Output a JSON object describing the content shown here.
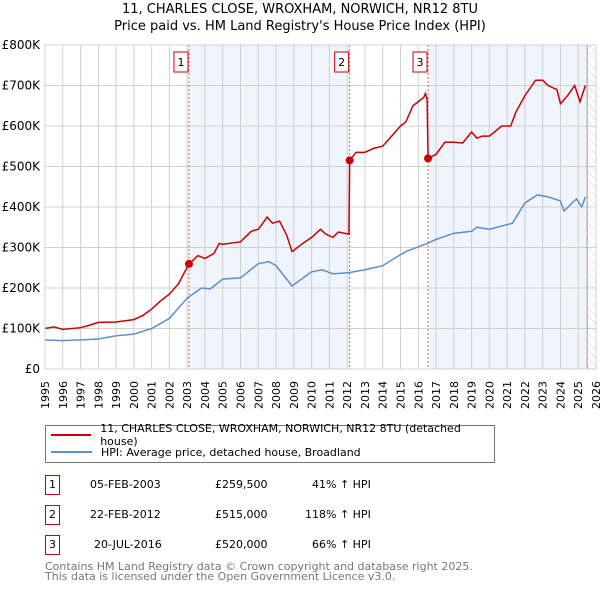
{
  "title_line1": "11, CHARLES CLOSE, WROXHAM, NORWICH, NR12 8TU",
  "title_line2": "Price paid vs. HM Land Registry's House Price Index (HPI)",
  "legend": [
    {
      "label": "11, CHARLES CLOSE, WROXHAM, NORWICH, NR12 8TU (detached house)",
      "color": "#cc0000"
    },
    {
      "label": "HPI: Average price, detached house, Broadland",
      "color": "#5b8fd0"
    }
  ],
  "sales": [
    {
      "num": "1",
      "date": "05-FEB-2003",
      "price": "£259,500",
      "hpi": "41% ↑ HPI"
    },
    {
      "num": "2",
      "date": "22-FEB-2012",
      "price": "£515,000",
      "hpi": "118% ↑ HPI"
    },
    {
      "num": "3",
      "date": "20-JUL-2016",
      "price": "£520,000",
      "hpi": "66% ↑ HPI"
    }
  ],
  "footer": [
    "Contains HM Land Registry data © Crown copyright and database right 2025.",
    "This data is licensed under the Open Government Licence v3.0."
  ],
  "chart_data": {
    "type": "line",
    "xlim": [
      1995,
      2026
    ],
    "ylim": [
      0,
      800000
    ],
    "yticks": [
      0,
      100000,
      200000,
      300000,
      400000,
      500000,
      600000,
      700000,
      800000
    ],
    "ytick_labels": [
      "£0",
      "£100K",
      "£200K",
      "£300K",
      "£400K",
      "£500K",
      "£600K",
      "£700K",
      "£800K"
    ],
    "xticks": [
      "1995",
      "1996",
      "1997",
      "1998",
      "1999",
      "2000",
      "2001",
      "2002",
      "2003",
      "2004",
      "2005",
      "2006",
      "2007",
      "2008",
      "2009",
      "2010",
      "2011",
      "2012",
      "2013",
      "2014",
      "2015",
      "2016",
      "2017",
      "2018",
      "2019",
      "2020",
      "2021",
      "2022",
      "2023",
      "2024",
      "2025",
      "2026"
    ],
    "grid": true,
    "sale_markers": [
      {
        "label": "1",
        "x": 2003.1,
        "y": 259500
      },
      {
        "label": "2",
        "x": 2012.14,
        "y": 515000
      },
      {
        "label": "3",
        "x": 2016.55,
        "y": 520000
      }
    ],
    "hatched_from": 2025.5,
    "series": [
      {
        "name": "11, CHARLES CLOSE, WROXHAM, NORWICH, NR12 8TU (detached house)",
        "color": "#cc0000",
        "points": [
          [
            1995,
            100000
          ],
          [
            1995.5,
            104000
          ],
          [
            1996,
            98000
          ],
          [
            1997,
            102000
          ],
          [
            1997.5,
            108000
          ],
          [
            1998,
            115000
          ],
          [
            1999,
            116000
          ],
          [
            2000,
            122000
          ],
          [
            2000.5,
            132000
          ],
          [
            2001,
            148000
          ],
          [
            2001.5,
            168000
          ],
          [
            2002,
            185000
          ],
          [
            2002.5,
            210000
          ],
          [
            2003.1,
            259500
          ],
          [
            2003.6,
            280000
          ],
          [
            2004,
            273000
          ],
          [
            2004.5,
            285000
          ],
          [
            2004.8,
            310000
          ],
          [
            2005,
            308000
          ],
          [
            2006,
            314000
          ],
          [
            2006.6,
            340000
          ],
          [
            2007,
            345000
          ],
          [
            2007.5,
            375000
          ],
          [
            2007.8,
            360000
          ],
          [
            2008.2,
            365000
          ],
          [
            2008.6,
            330000
          ],
          [
            2008.9,
            290000
          ],
          [
            2009.5,
            310000
          ],
          [
            2010,
            325000
          ],
          [
            2010.5,
            345000
          ],
          [
            2010.8,
            333000
          ],
          [
            2011.2,
            325000
          ],
          [
            2011.5,
            338000
          ],
          [
            2012.1,
            333000
          ],
          [
            2012.14,
            515000
          ],
          [
            2012.5,
            535000
          ],
          [
            2013,
            535000
          ],
          [
            2013.5,
            545000
          ],
          [
            2014,
            550000
          ],
          [
            2014.5,
            575000
          ],
          [
            2015,
            600000
          ],
          [
            2015.3,
            610000
          ],
          [
            2015.7,
            650000
          ],
          [
            2016.3,
            670000
          ],
          [
            2016.4,
            680000
          ],
          [
            2016.5,
            665000
          ],
          [
            2016.55,
            520000
          ],
          [
            2017,
            530000
          ],
          [
            2017.5,
            560000
          ],
          [
            2018,
            560000
          ],
          [
            2018.5,
            558000
          ],
          [
            2019,
            585000
          ],
          [
            2019.3,
            570000
          ],
          [
            2019.6,
            575000
          ],
          [
            2020,
            575000
          ],
          [
            2020.7,
            600000
          ],
          [
            2021.2,
            600000
          ],
          [
            2021.5,
            635000
          ],
          [
            2022,
            675000
          ],
          [
            2022.6,
            713000
          ],
          [
            2023,
            713000
          ],
          [
            2023.3,
            700000
          ],
          [
            2023.8,
            690000
          ],
          [
            2024,
            655000
          ],
          [
            2024.4,
            675000
          ],
          [
            2024.8,
            700000
          ],
          [
            2025.1,
            660000
          ],
          [
            2025.4,
            700000
          ]
        ]
      },
      {
        "name": "HPI: Average price, detached house, Broadland",
        "color": "#5b8fd0",
        "points": [
          [
            1995,
            72000
          ],
          [
            1996,
            70000
          ],
          [
            1997,
            72000
          ],
          [
            1998,
            74000
          ],
          [
            1999,
            82000
          ],
          [
            2000,
            86000
          ],
          [
            2001,
            100000
          ],
          [
            2002,
            125000
          ],
          [
            2003,
            175000
          ],
          [
            2003.8,
            200000
          ],
          [
            2004.3,
            198000
          ],
          [
            2005,
            222000
          ],
          [
            2006,
            225000
          ],
          [
            2007,
            260000
          ],
          [
            2007.6,
            265000
          ],
          [
            2008,
            255000
          ],
          [
            2008.9,
            205000
          ],
          [
            2010,
            240000
          ],
          [
            2010.6,
            245000
          ],
          [
            2011.2,
            235000
          ],
          [
            2012.1,
            238000
          ],
          [
            2013,
            245000
          ],
          [
            2014,
            255000
          ],
          [
            2014.6,
            272000
          ],
          [
            2015.3,
            290000
          ],
          [
            2016.5,
            310000
          ],
          [
            2017,
            320000
          ],
          [
            2018,
            335000
          ],
          [
            2019,
            340000
          ],
          [
            2019.3,
            350000
          ],
          [
            2020,
            345000
          ],
          [
            2021.3,
            360000
          ],
          [
            2022,
            410000
          ],
          [
            2022.7,
            430000
          ],
          [
            2023.3,
            425000
          ],
          [
            2024,
            415000
          ],
          [
            2024.2,
            390000
          ],
          [
            2024.9,
            420000
          ],
          [
            2025.2,
            400000
          ],
          [
            2025.4,
            425000
          ]
        ]
      }
    ]
  }
}
